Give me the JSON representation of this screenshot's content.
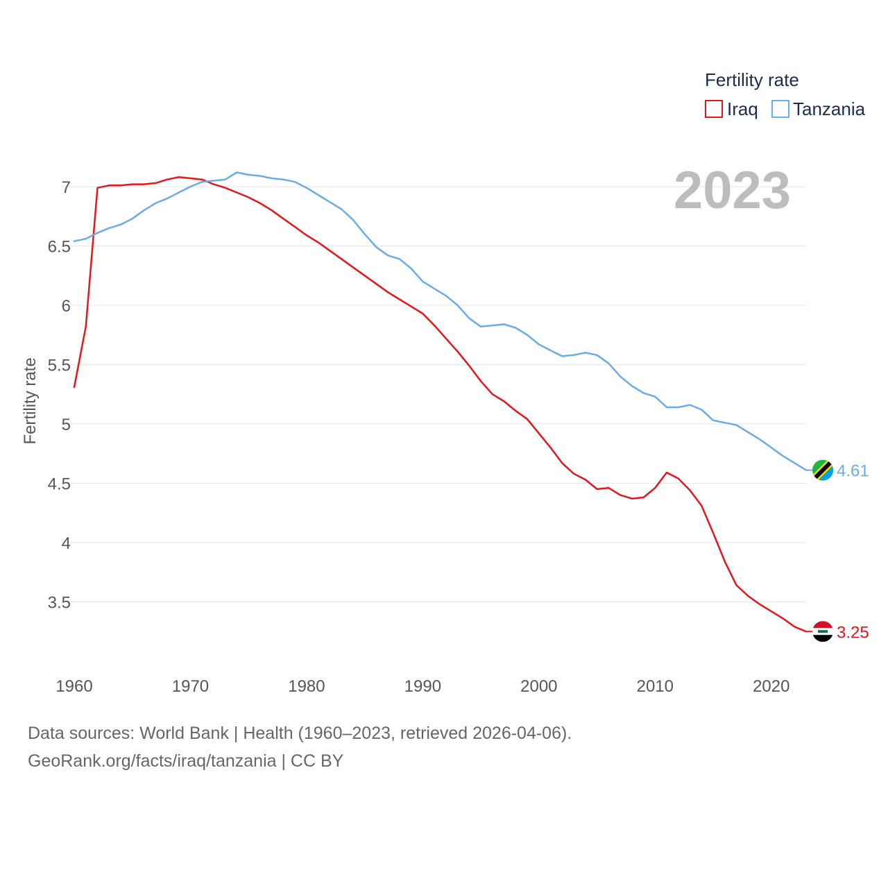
{
  "chart_data": {
    "type": "line",
    "title": "Fertility rate",
    "ylabel": "Fertility rate",
    "xlabel": "",
    "xlim": [
      1960,
      2023
    ],
    "ylim": [
      3.0,
      7.25
    ],
    "yticks": [
      3.5,
      4,
      4.5,
      5,
      5.5,
      6,
      6.5,
      7
    ],
    "ytick_labels": [
      "3.5",
      "4",
      "4.5",
      "5",
      "5.5",
      "6",
      "6.5",
      "7"
    ],
    "xticks": [
      1960,
      1970,
      1980,
      1990,
      2000,
      2010,
      2020
    ],
    "xtick_labels": [
      "1960",
      "1970",
      "1980",
      "1990",
      "2000",
      "2010",
      "2020"
    ],
    "grid": true,
    "legend_position": "top-right",
    "year_label": "2023",
    "series": [
      {
        "name": "Iraq",
        "color": "#e8141b",
        "end_label": "3.25",
        "flag_icon": "iraq-flag-icon",
        "x": [
          1960,
          1961,
          1962,
          1963,
          1964,
          1965,
          1966,
          1967,
          1968,
          1969,
          1970,
          1971,
          1972,
          1973,
          1974,
          1975,
          1976,
          1977,
          1978,
          1979,
          1980,
          1981,
          1982,
          1983,
          1984,
          1985,
          1986,
          1987,
          1988,
          1989,
          1990,
          1991,
          1992,
          1993,
          1994,
          1995,
          1996,
          1997,
          1998,
          1999,
          2000,
          2001,
          2002,
          2003,
          2004,
          2005,
          2006,
          2007,
          2008,
          2009,
          2010,
          2011,
          2012,
          2013,
          2014,
          2015,
          2016,
          2017,
          2018,
          2019,
          2020,
          2021,
          2022,
          2023
        ],
        "values": [
          5.31,
          5.82,
          6.99,
          7.01,
          7.01,
          7.02,
          7.02,
          7.03,
          7.06,
          7.08,
          7.07,
          7.06,
          7.02,
          6.99,
          6.95,
          6.91,
          6.86,
          6.8,
          6.73,
          6.66,
          6.59,
          6.53,
          6.46,
          6.39,
          6.32,
          6.25,
          6.18,
          6.11,
          6.05,
          5.99,
          5.93,
          5.83,
          5.72,
          5.61,
          5.49,
          5.36,
          5.25,
          5.19,
          5.11,
          5.04,
          4.92,
          4.8,
          4.67,
          4.58,
          4.53,
          4.45,
          4.46,
          4.4,
          4.37,
          4.38,
          4.46,
          4.59,
          4.54,
          4.44,
          4.31,
          4.08,
          3.84,
          3.64,
          3.55,
          3.48,
          3.42,
          3.36,
          3.29,
          3.25
        ]
      },
      {
        "name": "Tanzania",
        "color": "#6aace6",
        "end_label": "4.61",
        "flag_icon": "tanzania-flag-icon",
        "x": [
          1960,
          1961,
          1962,
          1963,
          1964,
          1965,
          1966,
          1967,
          1968,
          1969,
          1970,
          1971,
          1972,
          1973,
          1974,
          1975,
          1976,
          1977,
          1978,
          1979,
          1980,
          1981,
          1982,
          1983,
          1984,
          1985,
          1986,
          1987,
          1988,
          1989,
          1990,
          1991,
          1992,
          1993,
          1994,
          1995,
          1996,
          1997,
          1998,
          1999,
          2000,
          2001,
          2002,
          2003,
          2004,
          2005,
          2006,
          2007,
          2008,
          2009,
          2010,
          2011,
          2012,
          2013,
          2014,
          2015,
          2016,
          2017,
          2018,
          2019,
          2020,
          2021,
          2022,
          2023
        ],
        "values": [
          6.54,
          6.56,
          6.61,
          6.65,
          6.68,
          6.73,
          6.8,
          6.86,
          6.9,
          6.95,
          7.0,
          7.04,
          7.05,
          7.06,
          7.12,
          7.1,
          7.09,
          7.07,
          7.06,
          7.04,
          6.99,
          6.93,
          6.87,
          6.81,
          6.72,
          6.6,
          6.49,
          6.42,
          6.39,
          6.31,
          6.2,
          6.14,
          6.08,
          6.0,
          5.89,
          5.82,
          5.83,
          5.84,
          5.81,
          5.75,
          5.67,
          5.62,
          5.57,
          5.58,
          5.6,
          5.58,
          5.51,
          5.4,
          5.32,
          5.26,
          5.23,
          5.14,
          5.14,
          5.16,
          5.12,
          5.03,
          5.01,
          4.99,
          4.93,
          4.87,
          4.8,
          4.73,
          4.67,
          4.61
        ]
      }
    ]
  },
  "footer": {
    "line1": "Data sources: World Bank | Health (1960–2023, retrieved 2026-04-06).",
    "line2": "GeoRank.org/facts/iraq/tanzania | CC BY"
  }
}
